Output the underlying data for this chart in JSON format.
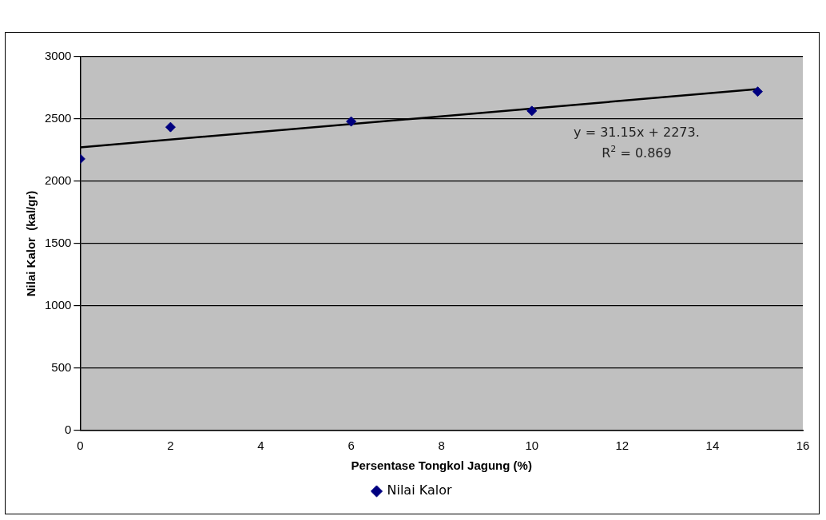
{
  "chart_data": {
    "type": "scatter",
    "xlabel": "Persentase Tongkol Jagung (%)",
    "ylabel": "Nilai Kalor  (kal/gr)",
    "xlim": [
      0,
      16
    ],
    "xticks": [
      0,
      2,
      4,
      6,
      8,
      10,
      12,
      14,
      16
    ],
    "ylim": [
      0,
      3000
    ],
    "yticks": [
      0,
      500,
      1000,
      1500,
      2000,
      2500,
      3000
    ],
    "grid": "y",
    "legend": "bottom",
    "series": [
      {
        "name": "Nilai Kalor",
        "marker": "diamond",
        "color": "#000080",
        "x": [
          0,
          2,
          6,
          10,
          15
        ],
        "values": [
          2180,
          2435,
          2480,
          2565,
          2720
        ]
      },
      {
        "type": "line",
        "marker": "none",
        "color": "#000000",
        "x": [
          0,
          15
        ],
        "values": [
          2273,
          2740
        ]
      }
    ],
    "annotations": [
      "y = 31.15x + 2273.",
      "R$^{2}$ = 0.869"
    ]
  }
}
